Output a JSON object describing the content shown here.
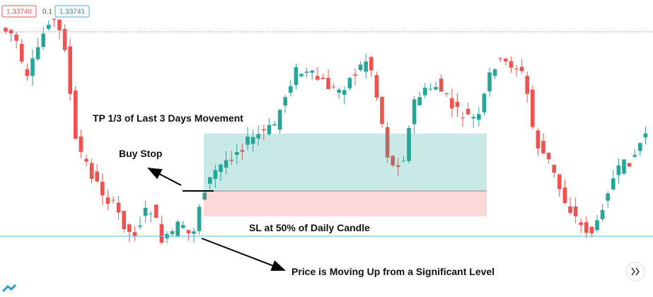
{
  "price_labels": {
    "left": "1.33740",
    "middle": "0.1",
    "right": "1.33741"
  },
  "annotations": {
    "take_profit": "TP 1/3 of Last 3 Days Movement",
    "buy_stop": "Buy Stop",
    "stop_loss": "SL at 50% of Daily Candle",
    "level": "Price is Moving Up from a Significant Level"
  }
}
